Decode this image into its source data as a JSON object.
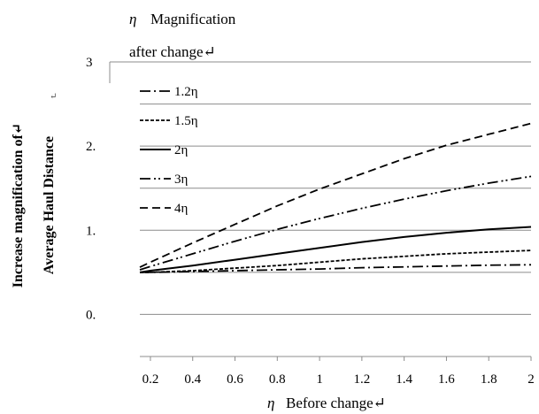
{
  "header": {
    "eta_symbol": "η",
    "magnification_label": "Magnification",
    "after_change_label": "after change↵"
  },
  "chart_data": {
    "type": "line",
    "title": "",
    "ylabel_line1": "Increase magnification of↵",
    "ylabel_line2": "Average Haul Distance",
    "ylabel_mark": "↵",
    "xlabel_symbol": "η",
    "xlabel": "Before change↵",
    "xlim": [
      0.15,
      2.0
    ],
    "ylim": [
      -0.5,
      3.0
    ],
    "xticks": [
      0.2,
      0.4,
      0.6,
      0.8,
      1.0,
      1.2,
      1.4,
      1.6,
      1.8,
      2.0
    ],
    "xtick_labels": [
      "0.2",
      "0.4",
      "0.6",
      "0.8",
      "1",
      "1.2",
      "1.4",
      "1.6",
      "1.8",
      "2"
    ],
    "yticks": [
      0,
      1,
      2,
      3
    ],
    "ytick_labels": [
      "0.",
      "1.",
      "2.",
      "3"
    ],
    "grid": "horizontal",
    "legend_position": "top-left",
    "x": [
      0.15,
      0.2,
      0.4,
      0.6,
      0.8,
      1.0,
      1.2,
      1.4,
      1.6,
      1.8,
      2.0
    ],
    "series": [
      {
        "name": "1.2η",
        "style": "dashdot",
        "values": [
          0.5,
          0.5,
          0.51,
          0.52,
          0.53,
          0.54,
          0.555,
          0.565,
          0.575,
          0.585,
          0.59
        ]
      },
      {
        "name": "1.5η",
        "style": "dotted",
        "values": [
          0.5,
          0.5,
          0.52,
          0.55,
          0.58,
          0.62,
          0.66,
          0.69,
          0.72,
          0.74,
          0.76
        ]
      },
      {
        "name": "2η",
        "style": "solid",
        "values": [
          0.5,
          0.52,
          0.58,
          0.65,
          0.72,
          0.79,
          0.86,
          0.92,
          0.97,
          1.01,
          1.04
        ]
      },
      {
        "name": "3η",
        "style": "dashdotdot",
        "values": [
          0.53,
          0.57,
          0.72,
          0.87,
          1.01,
          1.14,
          1.26,
          1.37,
          1.47,
          1.56,
          1.64
        ]
      },
      {
        "name": "4η",
        "style": "dashed",
        "values": [
          0.56,
          0.62,
          0.85,
          1.07,
          1.29,
          1.49,
          1.67,
          1.85,
          2.01,
          2.14,
          2.27
        ]
      }
    ]
  }
}
